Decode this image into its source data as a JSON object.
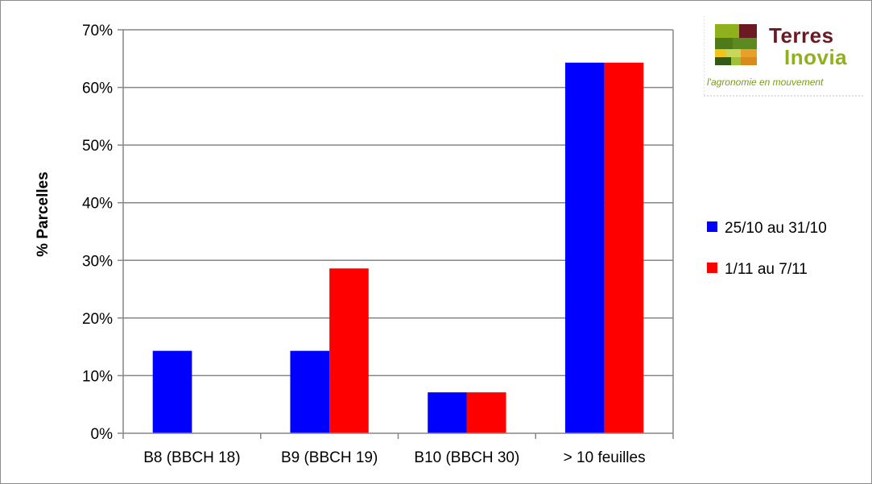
{
  "chart_data": {
    "type": "bar",
    "categories": [
      "B8 (BBCH 18)",
      "B9 (BBCH 19)",
      "B10 (BBCH 30)",
      "> 10 feuilles"
    ],
    "series": [
      {
        "name": "25/10 au 31/10",
        "color": "#0000ff",
        "values": [
          14.3,
          14.3,
          7.1,
          64.3
        ]
      },
      {
        "name": "1/11 au 7/11",
        "color": "#ff0000",
        "values": [
          0,
          28.6,
          7.1,
          64.3
        ]
      }
    ],
    "title": "",
    "xlabel": "",
    "ylabel": "% Parcelles",
    "ylim": [
      0,
      70
    ],
    "yticks": [
      "0%",
      "10%",
      "20%",
      "30%",
      "40%",
      "50%",
      "60%",
      "70%"
    ],
    "grid": "horizontal",
    "legend_position": "right"
  },
  "logo": {
    "name_line1": "Terres",
    "name_line2": "Inovia",
    "tagline": "l'agronomie en mouvement"
  }
}
